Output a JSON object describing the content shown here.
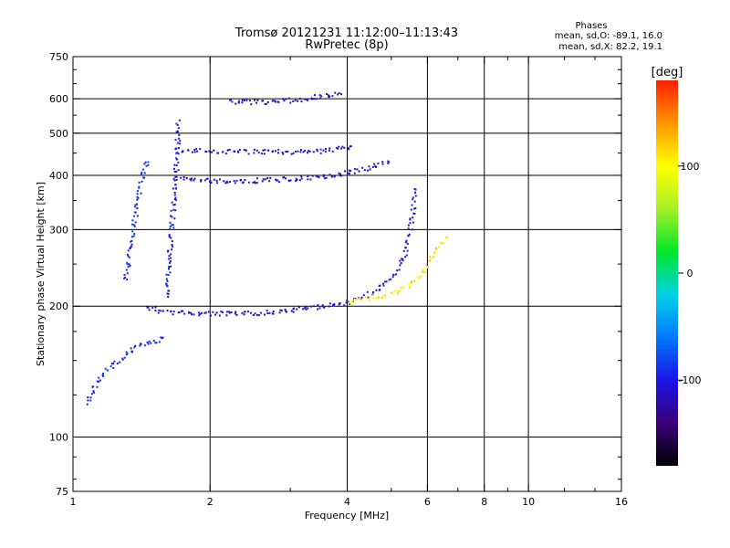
{
  "chart_data": {
    "type": "scatter",
    "title": "Tromsø 20121231 11:12:00–11:13:43",
    "subtitle": "RwPretec (8p)",
    "xlabel": "Frequency [MHz]",
    "ylabel": "Stationary phase Virtual Height [km]",
    "x_scale": "log",
    "y_scale": "log",
    "xlim": [
      1,
      16
    ],
    "ylim": [
      75,
      750
    ],
    "x_ticks": [
      1,
      2,
      4,
      6,
      8,
      10,
      16
    ],
    "y_ticks": [
      75,
      100,
      200,
      300,
      400,
      500,
      600,
      750
    ],
    "x_grid": [
      2,
      4,
      6,
      8,
      10
    ],
    "y_grid": [
      100,
      200,
      300,
      400,
      500,
      600
    ],
    "grid": true,
    "stats": {
      "heading": "Phases",
      "line_o": "mean, sd,O: -89.1, 16.0",
      "line_x": "mean, sd,X: 82.2, 19.1"
    },
    "colorbar": {
      "label": "[deg]",
      "min": -180,
      "max": 180,
      "ticks": [
        100,
        0,
        -100
      ],
      "colors": [
        "#000000",
        "#3a007a",
        "#1a14e6",
        "#0078ff",
        "#00d2e6",
        "#00e628",
        "#a6f028",
        "#ffff00",
        "#ff9600",
        "#ff1e00"
      ]
    },
    "traces": [
      {
        "name_hint": "F2 trace",
        "x": [
          1.45,
          1.55,
          1.7,
          2.0,
          2.4,
          2.8,
          3.2,
          3.5,
          3.8,
          4.0
        ],
        "y": [
          200,
          196,
          194,
          193,
          193,
          195,
          198,
          201,
          203,
          205
        ],
        "phase": -110
      },
      {
        "name_hint": "F2 cusp",
        "x": [
          4.0,
          4.3,
          4.6,
          4.9,
          5.1,
          5.3,
          5.45,
          5.55,
          5.6
        ],
        "y": [
          205,
          210,
          218,
          228,
          240,
          260,
          290,
          330,
          380
        ],
        "phase": -100
      },
      {
        "name_hint": "X trace",
        "x": [
          4.0,
          4.5,
          5.0,
          5.4,
          5.7,
          5.9,
          6.1,
          6.3,
          6.6
        ],
        "y": [
          205,
          210,
          215,
          222,
          232,
          245,
          260,
          275,
          290
        ],
        "phase": 110
      },
      {
        "name_hint": "2nd hop",
        "x": [
          1.7,
          2.0,
          2.4,
          2.8,
          3.2,
          3.6,
          3.9,
          4.3,
          4.7,
          5.0
        ],
        "y": [
          395,
          390,
          390,
          392,
          396,
          400,
          405,
          415,
          425,
          435
        ],
        "phase": -110
      },
      {
        "name_hint": "upper",
        "x": [
          1.7,
          2.2,
          2.8,
          3.2,
          3.6,
          3.9,
          4.1
        ],
        "y": [
          460,
          455,
          455,
          455,
          458,
          465,
          470
        ],
        "phase": -105
      },
      {
        "name_hint": "high",
        "x": [
          2.2,
          2.7,
          3.0,
          3.3,
          3.6,
          3.9
        ],
        "y": [
          595,
          590,
          598,
          605,
          612,
          620
        ],
        "phase": -115
      },
      {
        "name_hint": "side-low",
        "x": [
          1.07,
          1.15,
          1.25,
          1.35,
          1.45,
          1.6
        ],
        "y": [
          120,
          140,
          150,
          160,
          165,
          170
        ],
        "phase": -95
      },
      {
        "name_hint": "side-mid",
        "x": [
          1.3,
          1.35,
          1.4,
          1.45
        ],
        "y": [
          230,
          300,
          380,
          440
        ],
        "phase": -90
      },
      {
        "name_hint": "side-vert",
        "x": [
          1.6,
          1.62,
          1.65,
          1.68,
          1.7
        ],
        "y": [
          210,
          260,
          330,
          420,
          540
        ],
        "phase": -100
      }
    ]
  }
}
